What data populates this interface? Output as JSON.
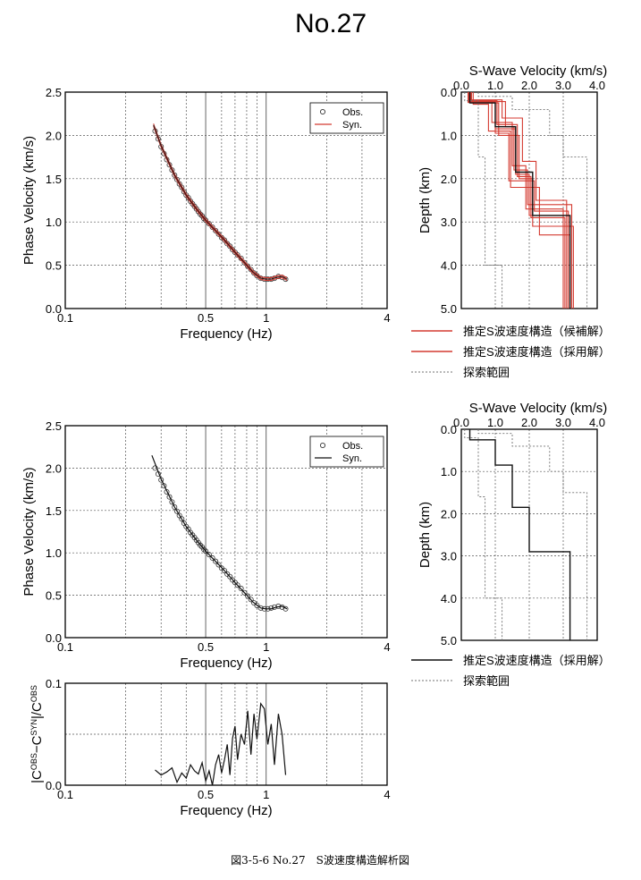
{
  "title": "No.27",
  "caption": "図3-5-6 No.27　S波速度構造解析図",
  "colors": {
    "obs": "#333333",
    "syn_red": "#d43a30",
    "adopted": "#111111",
    "range": "#707070",
    "grid": "#555555"
  },
  "chart_data": [
    {
      "id": "disp-top",
      "type": "scatter",
      "xscale": "log",
      "xlabel": "Frequency (Hz)",
      "ylabel": "Phase Velocity (km/s)",
      "xlim": [
        0.1,
        4
      ],
      "ylim": [
        0,
        2.5
      ],
      "xtick_labels": [
        "0.1",
        "0.5",
        "1",
        "4"
      ],
      "ytick_labels": [
        "0.0",
        "0.5",
        "1.0",
        "1.5",
        "2.0",
        "2.5"
      ],
      "legend": [
        "Obs.",
        "Syn."
      ],
      "grid": true,
      "legend_position": "top-right",
      "series": [
        {
          "name": "Obs.",
          "kind": "markers",
          "x": [
            0.28,
            0.29,
            0.3,
            0.31,
            0.32,
            0.33,
            0.34,
            0.35,
            0.36,
            0.37,
            0.38,
            0.39,
            0.4,
            0.41,
            0.42,
            0.43,
            0.44,
            0.45,
            0.46,
            0.47,
            0.48,
            0.49,
            0.5,
            0.52,
            0.54,
            0.56,
            0.58,
            0.6,
            0.62,
            0.64,
            0.66,
            0.68,
            0.7,
            0.72,
            0.75,
            0.78,
            0.81,
            0.84,
            0.87,
            0.9,
            0.94,
            0.98,
            1.02,
            1.06,
            1.1,
            1.15,
            1.2,
            1.25
          ],
          "y": [
            2.05,
            1.96,
            1.87,
            1.79,
            1.72,
            1.66,
            1.6,
            1.54,
            1.49,
            1.44,
            1.4,
            1.35,
            1.31,
            1.28,
            1.24,
            1.21,
            1.18,
            1.15,
            1.12,
            1.09,
            1.07,
            1.04,
            1.02,
            0.98,
            0.94,
            0.9,
            0.86,
            0.82,
            0.79,
            0.75,
            0.72,
            0.68,
            0.65,
            0.62,
            0.58,
            0.53,
            0.49,
            0.45,
            0.41,
            0.38,
            0.35,
            0.34,
            0.34,
            0.34,
            0.35,
            0.37,
            0.36,
            0.34
          ]
        },
        {
          "name": "Syn.",
          "kind": "bundle",
          "x": [
            0.275,
            0.3,
            0.35,
            0.4,
            0.45,
            0.5,
            0.56,
            0.62,
            0.7,
            0.78,
            0.86,
            0.94,
            1.0,
            1.06,
            1.12,
            1.2,
            1.27
          ],
          "y": [
            2.12,
            1.88,
            1.54,
            1.31,
            1.15,
            1.02,
            0.9,
            0.79,
            0.65,
            0.53,
            0.42,
            0.35,
            0.34,
            0.34,
            0.36,
            0.37,
            0.34
          ]
        }
      ]
    },
    {
      "id": "vs-top",
      "type": "line",
      "xlabel": "S-Wave Velocity (km/s)",
      "ylabel": "Depth (km)",
      "xlim": [
        0,
        4
      ],
      "ylim": [
        5,
        0
      ],
      "xtick_labels": [
        "0.0",
        "1.0",
        "2.0",
        "3.0",
        "4.0"
      ],
      "ytick_labels": [
        "0.0",
        "1.0",
        "2.0",
        "3.0",
        "4.0",
        "5.0"
      ],
      "grid": true,
      "legend_position": "below",
      "legend": [
        "推定S波速度構造（候補解）",
        "推定S波速度構造（採用解）",
        "探索範囲"
      ],
      "series": [
        {
          "name": "推定S波速度構造（候補解）",
          "kind": "candidates",
          "profiles": [
            {
              "v": [
                0.2,
                1.0,
                1.6,
                2.0,
                3.2
              ],
              "d": [
                0.22,
                0.85,
                1.9,
                2.85
              ]
            },
            {
              "v": [
                0.25,
                0.9,
                1.5,
                1.9,
                3.0
              ],
              "d": [
                0.2,
                0.7,
                1.7,
                2.7
              ]
            },
            {
              "v": [
                0.3,
                1.1,
                1.7,
                2.1,
                3.3
              ],
              "d": [
                0.25,
                1.0,
                2.0,
                3.1
              ]
            },
            {
              "v": [
                0.2,
                1.2,
                1.8,
                2.2,
                3.1
              ],
              "d": [
                0.18,
                0.6,
                1.6,
                2.5
              ]
            },
            {
              "v": [
                0.35,
                0.8,
                1.45,
                2.3,
                3.2
              ],
              "d": [
                0.28,
                0.9,
                2.2,
                3.3
              ]
            },
            {
              "v": [
                0.22,
                1.3,
                1.55,
                1.95,
                3.25
              ],
              "d": [
                0.22,
                0.8,
                1.8,
                2.6
              ]
            },
            {
              "v": [
                0.28,
                1.05,
                1.65,
                2.05,
                3.05
              ],
              "d": [
                0.2,
                0.75,
                1.95,
                2.9
              ]
            },
            {
              "v": [
                0.2,
                1.0,
                1.4,
                2.15,
                3.15
              ],
              "d": [
                0.24,
                0.95,
                2.05,
                2.75
              ]
            }
          ]
        },
        {
          "name": "推定S波速度構造（採用解）",
          "kind": "step",
          "v": [
            0.25,
            1.0,
            1.6,
            2.1,
            3.2
          ],
          "d": [
            0.25,
            0.8,
            1.85,
            2.85
          ]
        },
        {
          "name": "探索範囲",
          "kind": "range",
          "min": {
            "v": [
              0.1,
              0.5,
              0.7,
              1.2
            ],
            "d": [
              0.2,
              1.5,
              4.0
            ]
          },
          "max": {
            "v": [
              0.5,
              1.5,
              2.6,
              3.0,
              3.7
            ],
            "d": [
              0.1,
              0.4,
              1.0,
              1.5
            ]
          }
        }
      ]
    },
    {
      "id": "disp-bottom",
      "type": "scatter",
      "xscale": "log",
      "xlabel": "Frequency (Hz)",
      "ylabel": "Phase Velocity (km/s)",
      "xlim": [
        0.1,
        4
      ],
      "ylim": [
        0,
        2.5
      ],
      "xtick_labels": [
        "0.1",
        "0.5",
        "1",
        "4"
      ],
      "ytick_labels": [
        "0.0",
        "0.5",
        "1.0",
        "1.5",
        "2.0",
        "2.5"
      ],
      "legend": [
        "Obs.",
        "Syn."
      ],
      "grid": true,
      "legend_position": "top-right",
      "series": [
        {
          "name": "Obs.",
          "kind": "markers",
          "x": [
            0.28,
            0.29,
            0.3,
            0.31,
            0.32,
            0.33,
            0.34,
            0.35,
            0.36,
            0.37,
            0.38,
            0.39,
            0.4,
            0.41,
            0.42,
            0.43,
            0.44,
            0.45,
            0.46,
            0.47,
            0.48,
            0.49,
            0.5,
            0.52,
            0.54,
            0.56,
            0.58,
            0.6,
            0.62,
            0.64,
            0.66,
            0.68,
            0.7,
            0.72,
            0.75,
            0.78,
            0.81,
            0.84,
            0.87,
            0.9,
            0.94,
            0.98,
            1.02,
            1.06,
            1.1,
            1.15,
            1.2,
            1.25
          ],
          "y": [
            2.0,
            1.93,
            1.86,
            1.79,
            1.72,
            1.66,
            1.6,
            1.54,
            1.49,
            1.44,
            1.4,
            1.35,
            1.31,
            1.28,
            1.24,
            1.21,
            1.18,
            1.15,
            1.12,
            1.09,
            1.07,
            1.04,
            1.02,
            0.98,
            0.94,
            0.9,
            0.86,
            0.82,
            0.79,
            0.75,
            0.72,
            0.68,
            0.65,
            0.62,
            0.58,
            0.53,
            0.49,
            0.45,
            0.41,
            0.38,
            0.35,
            0.34,
            0.34,
            0.35,
            0.36,
            0.37,
            0.36,
            0.34
          ]
        },
        {
          "name": "Syn.",
          "kind": "line",
          "x": [
            0.27,
            0.3,
            0.35,
            0.4,
            0.45,
            0.5,
            0.56,
            0.62,
            0.7,
            0.78,
            0.86,
            0.94,
            1.0,
            1.06,
            1.12,
            1.2,
            1.27
          ],
          "y": [
            2.15,
            1.87,
            1.54,
            1.31,
            1.15,
            1.02,
            0.9,
            0.79,
            0.65,
            0.53,
            0.42,
            0.35,
            0.34,
            0.34,
            0.36,
            0.37,
            0.34
          ]
        }
      ]
    },
    {
      "id": "vs-bottom",
      "type": "line",
      "xlabel": "S-Wave Velocity (km/s)",
      "ylabel": "Depth (km)",
      "xlim": [
        0,
        4
      ],
      "ylim": [
        5,
        0
      ],
      "xtick_labels": [
        "0.0",
        "1.0",
        "2.0",
        "3.0",
        "4.0"
      ],
      "ytick_labels": [
        "0.0",
        "1.0",
        "2.0",
        "3.0",
        "4.0",
        "5.0"
      ],
      "grid": true,
      "legend_position": "below",
      "legend": [
        "推定S波速度構造（採用解）",
        "探索範囲"
      ],
      "series": [
        {
          "name": "推定S波速度構造（採用解）",
          "kind": "step",
          "v": [
            0.25,
            1.0,
            1.5,
            2.0,
            3.2
          ],
          "d": [
            0.25,
            0.85,
            1.85,
            2.9
          ]
        },
        {
          "name": "探索範囲",
          "kind": "range",
          "min": {
            "v": [
              0.1,
              0.5,
              0.7,
              1.2
            ],
            "d": [
              0.2,
              1.6,
              4.0
            ]
          },
          "max": {
            "v": [
              0.5,
              1.5,
              2.6,
              3.0,
              3.7
            ],
            "d": [
              0.1,
              0.4,
              1.0,
              1.5
            ]
          }
        }
      ]
    },
    {
      "id": "residual",
      "type": "line",
      "xscale": "log",
      "xlabel": "Frequency (Hz)",
      "ylabel": "|C^OBS−C^SYN|/C^OBS",
      "xlim": [
        0.1,
        4
      ],
      "ylim": [
        0,
        0.1
      ],
      "xtick_labels": [
        "0.1",
        "0.5",
        "1",
        "4"
      ],
      "ytick_labels": [
        "0.0",
        "0.1"
      ],
      "grid": true,
      "series": [
        {
          "name": "",
          "kind": "line",
          "x": [
            0.28,
            0.3,
            0.32,
            0.34,
            0.36,
            0.38,
            0.4,
            0.42,
            0.44,
            0.46,
            0.48,
            0.5,
            0.52,
            0.54,
            0.56,
            0.58,
            0.6,
            0.62,
            0.64,
            0.66,
            0.68,
            0.7,
            0.72,
            0.75,
            0.78,
            0.81,
            0.84,
            0.87,
            0.9,
            0.94,
            0.98,
            1.02,
            1.06,
            1.1,
            1.15,
            1.2,
            1.25
          ],
          "y": [
            0.015,
            0.01,
            0.013,
            0.017,
            0.003,
            0.012,
            0.007,
            0.02,
            0.014,
            0.011,
            0.022,
            0.004,
            0.014,
            0.0,
            0.02,
            0.03,
            0.012,
            0.025,
            0.04,
            0.01,
            0.046,
            0.058,
            0.025,
            0.05,
            0.04,
            0.073,
            0.03,
            0.07,
            0.045,
            0.08,
            0.075,
            0.04,
            0.06,
            0.02,
            0.07,
            0.05,
            0.01
          ]
        }
      ]
    }
  ]
}
